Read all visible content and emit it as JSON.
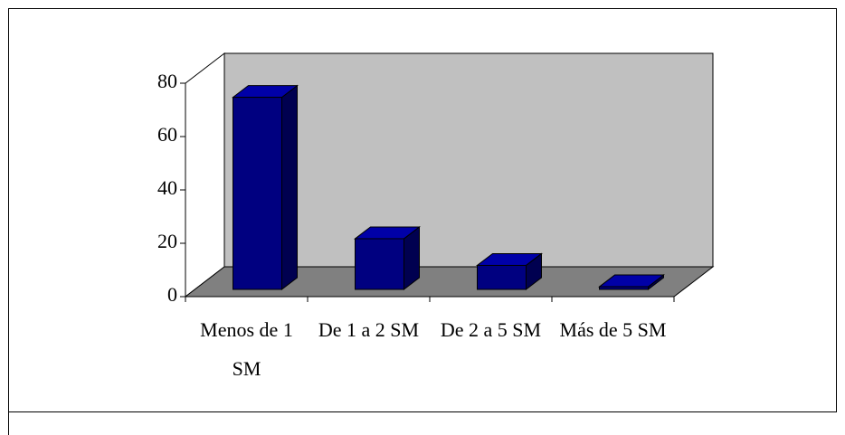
{
  "chart_data": {
    "type": "bar3d",
    "categories": [
      "Menos de 1 SM",
      "De 1 a 2 SM",
      "De 2 a 5 SM",
      "Más de 5 SM"
    ],
    "values": [
      72,
      19,
      9,
      1
    ],
    "color": "#000080",
    "ylim": [
      0,
      80
    ],
    "yticks": [
      0,
      20,
      40,
      60,
      80
    ]
  }
}
